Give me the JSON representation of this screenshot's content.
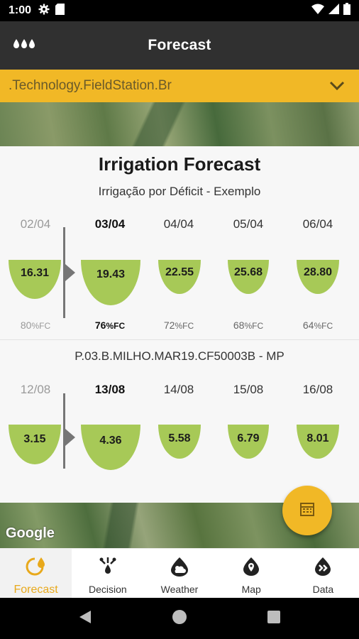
{
  "status_bar": {
    "time": "1:00"
  },
  "app_bar": {
    "title": "Forecast"
  },
  "station_selector": {
    "value": ".Technology.FieldStation.Br"
  },
  "map": {
    "attribution": "Google"
  },
  "card": {
    "title": "Irrigation Forecast",
    "sections": [
      {
        "subtitle": "Irrigação por Déficit - Exemplo",
        "days": [
          {
            "date": "02/04",
            "value": "16.31",
            "pct": "80",
            "unit": "%FC",
            "state": "past"
          },
          {
            "date": "03/04",
            "value": "19.43",
            "pct": "76",
            "unit": "%FC",
            "state": "today"
          },
          {
            "date": "04/04",
            "value": "22.55",
            "pct": "72",
            "unit": "%FC",
            "state": "future"
          },
          {
            "date": "05/04",
            "value": "25.68",
            "pct": "68",
            "unit": "%FC",
            "state": "future"
          },
          {
            "date": "06/04",
            "value": "28.80",
            "pct": "64",
            "unit": "%FC",
            "state": "future"
          }
        ]
      },
      {
        "subtitle": "P.03.B.MILHO.MAR19.CF50003B - MP",
        "days": [
          {
            "date": "12/08",
            "value": "3.15",
            "state": "past"
          },
          {
            "date": "13/08",
            "value": "4.36",
            "state": "today"
          },
          {
            "date": "14/08",
            "value": "5.58",
            "state": "future"
          },
          {
            "date": "15/08",
            "value": "6.79",
            "state": "future"
          },
          {
            "date": "16/08",
            "value": "8.01",
            "state": "future"
          }
        ]
      }
    ]
  },
  "bottom_nav": [
    {
      "label": "Forecast",
      "icon": "forecast-icon",
      "active": true
    },
    {
      "label": "Decision",
      "icon": "decision-icon",
      "active": false
    },
    {
      "label": "Weather",
      "icon": "weather-icon",
      "active": false
    },
    {
      "label": "Map",
      "icon": "map-pin-icon",
      "active": false
    },
    {
      "label": "Data",
      "icon": "data-icon",
      "active": false
    }
  ],
  "colors": {
    "accent": "#f1b826",
    "bowl": "#a7c957",
    "appbar": "#303030"
  }
}
